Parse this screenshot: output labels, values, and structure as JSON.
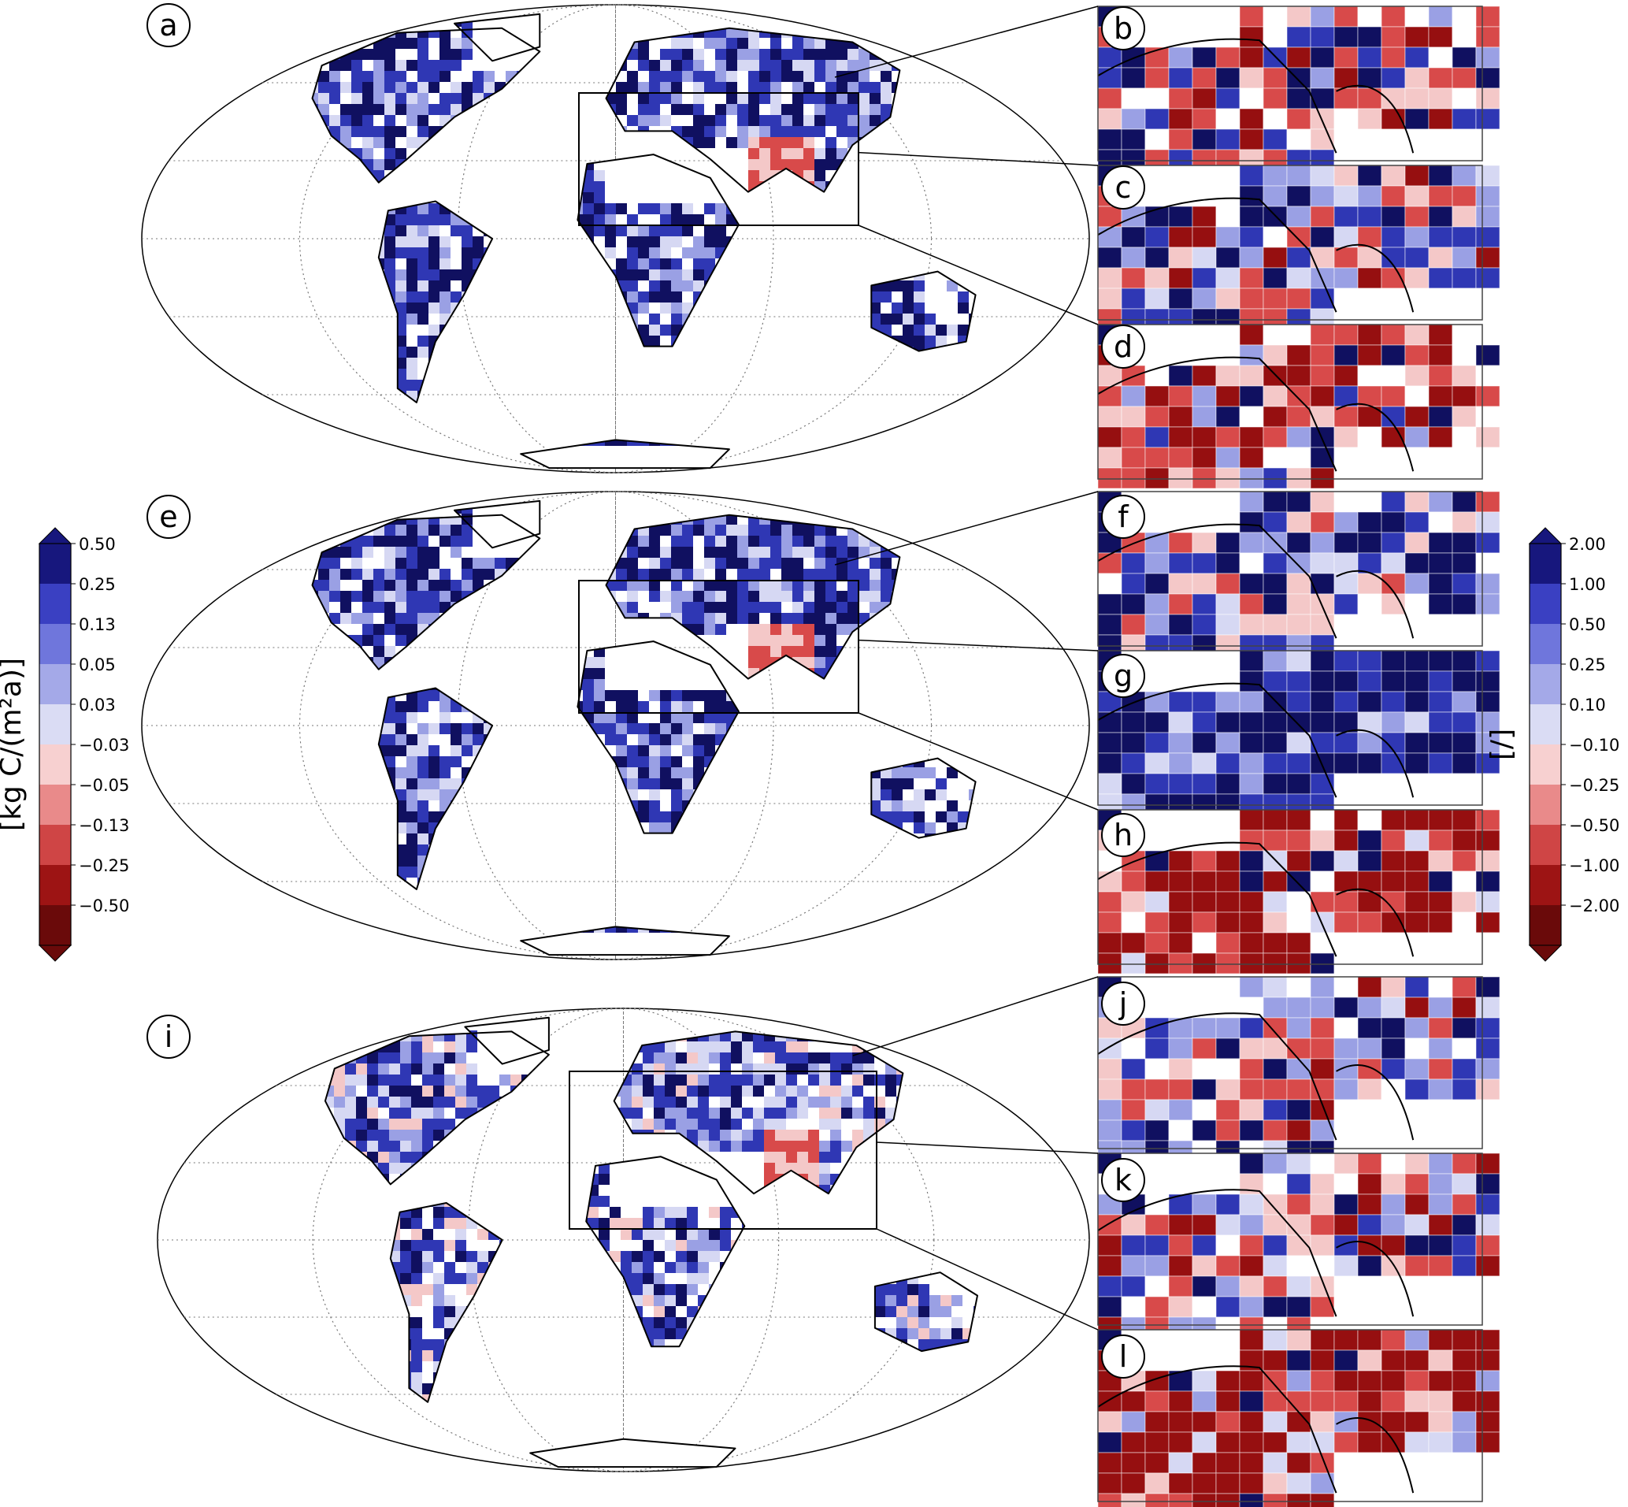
{
  "panels": {
    "world": [
      "a",
      "e",
      "i"
    ],
    "insets": [
      "b",
      "c",
      "d",
      "f",
      "g",
      "h",
      "j",
      "k",
      "l"
    ]
  },
  "left_colorbar": {
    "unit": "[kg C/(m²a)]",
    "ticks": [
      "0.50",
      "0.25",
      "0.13",
      "0.05",
      "0.03",
      "−0.03",
      "−0.05",
      "−0.13",
      "−0.25",
      "−0.50"
    ],
    "colors": [
      "#17177d",
      "#3a40c2",
      "#6f76dc",
      "#a4a9e8",
      "#dadcf4",
      "#ffffff",
      "#f7d0d0",
      "#e98a8a",
      "#cf4545",
      "#9d1414",
      "#6a0a0a"
    ]
  },
  "right_colorbar": {
    "unit": "[/]",
    "ticks": [
      "2.00",
      "1.00",
      "0.50",
      "0.25",
      "0.10",
      "−0.10",
      "−0.25",
      "−0.50",
      "−1.00",
      "−2.00"
    ],
    "colors": [
      "#17177d",
      "#3a40c2",
      "#6f76dc",
      "#a4a9e8",
      "#dadcf4",
      "#ffffff",
      "#f7d0d0",
      "#e98a8a",
      "#cf4545",
      "#9d1414",
      "#6a0a0a"
    ]
  },
  "colors": {
    "deep_blue": "#101060",
    "blue": "#2f37b4",
    "light_blue": "#9aa0e4",
    "pale_blue": "#d6d8f3",
    "pale_red": "#f4c8c8",
    "red": "#d84a4a",
    "deep_red": "#960f10"
  }
}
